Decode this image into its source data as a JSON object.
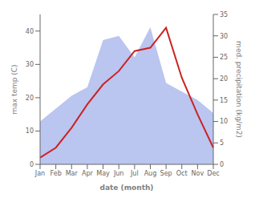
{
  "chart_data": {
    "type": "line",
    "categories": [
      "Jan",
      "Feb",
      "Mar",
      "Apr",
      "May",
      "Jun",
      "Jul",
      "Aug",
      "Sep",
      "Oct",
      "Nov",
      "Dec"
    ],
    "series": [
      {
        "type": "area",
        "axis": "y2",
        "color": "#b3bfee",
        "values": [
          10.0,
          13.0,
          16.0,
          18.0,
          29.0,
          30.0,
          25.0,
          32.0,
          19.0,
          17.0,
          15.0,
          12.0
        ]
      },
      {
        "type": "line",
        "color": "#cc2222",
        "values": [
          2.0,
          5.0,
          11.0,
          18.0,
          24.0,
          28.0,
          34.0,
          35.0,
          41.0,
          26.0,
          15.0,
          5.0
        ]
      }
    ],
    "xlabel": "date (month)",
    "ylabel": "max temp (C)",
    "y2label": "med. precipitation (kg/m2)",
    "ylim": [
      0,
      45
    ],
    "yticks": [
      0,
      10,
      20,
      30,
      40
    ],
    "y2lim": [
      0,
      35
    ],
    "y2ticks": [
      0,
      5,
      10,
      15,
      20,
      25,
      30,
      35
    ],
    "grid": false
  }
}
